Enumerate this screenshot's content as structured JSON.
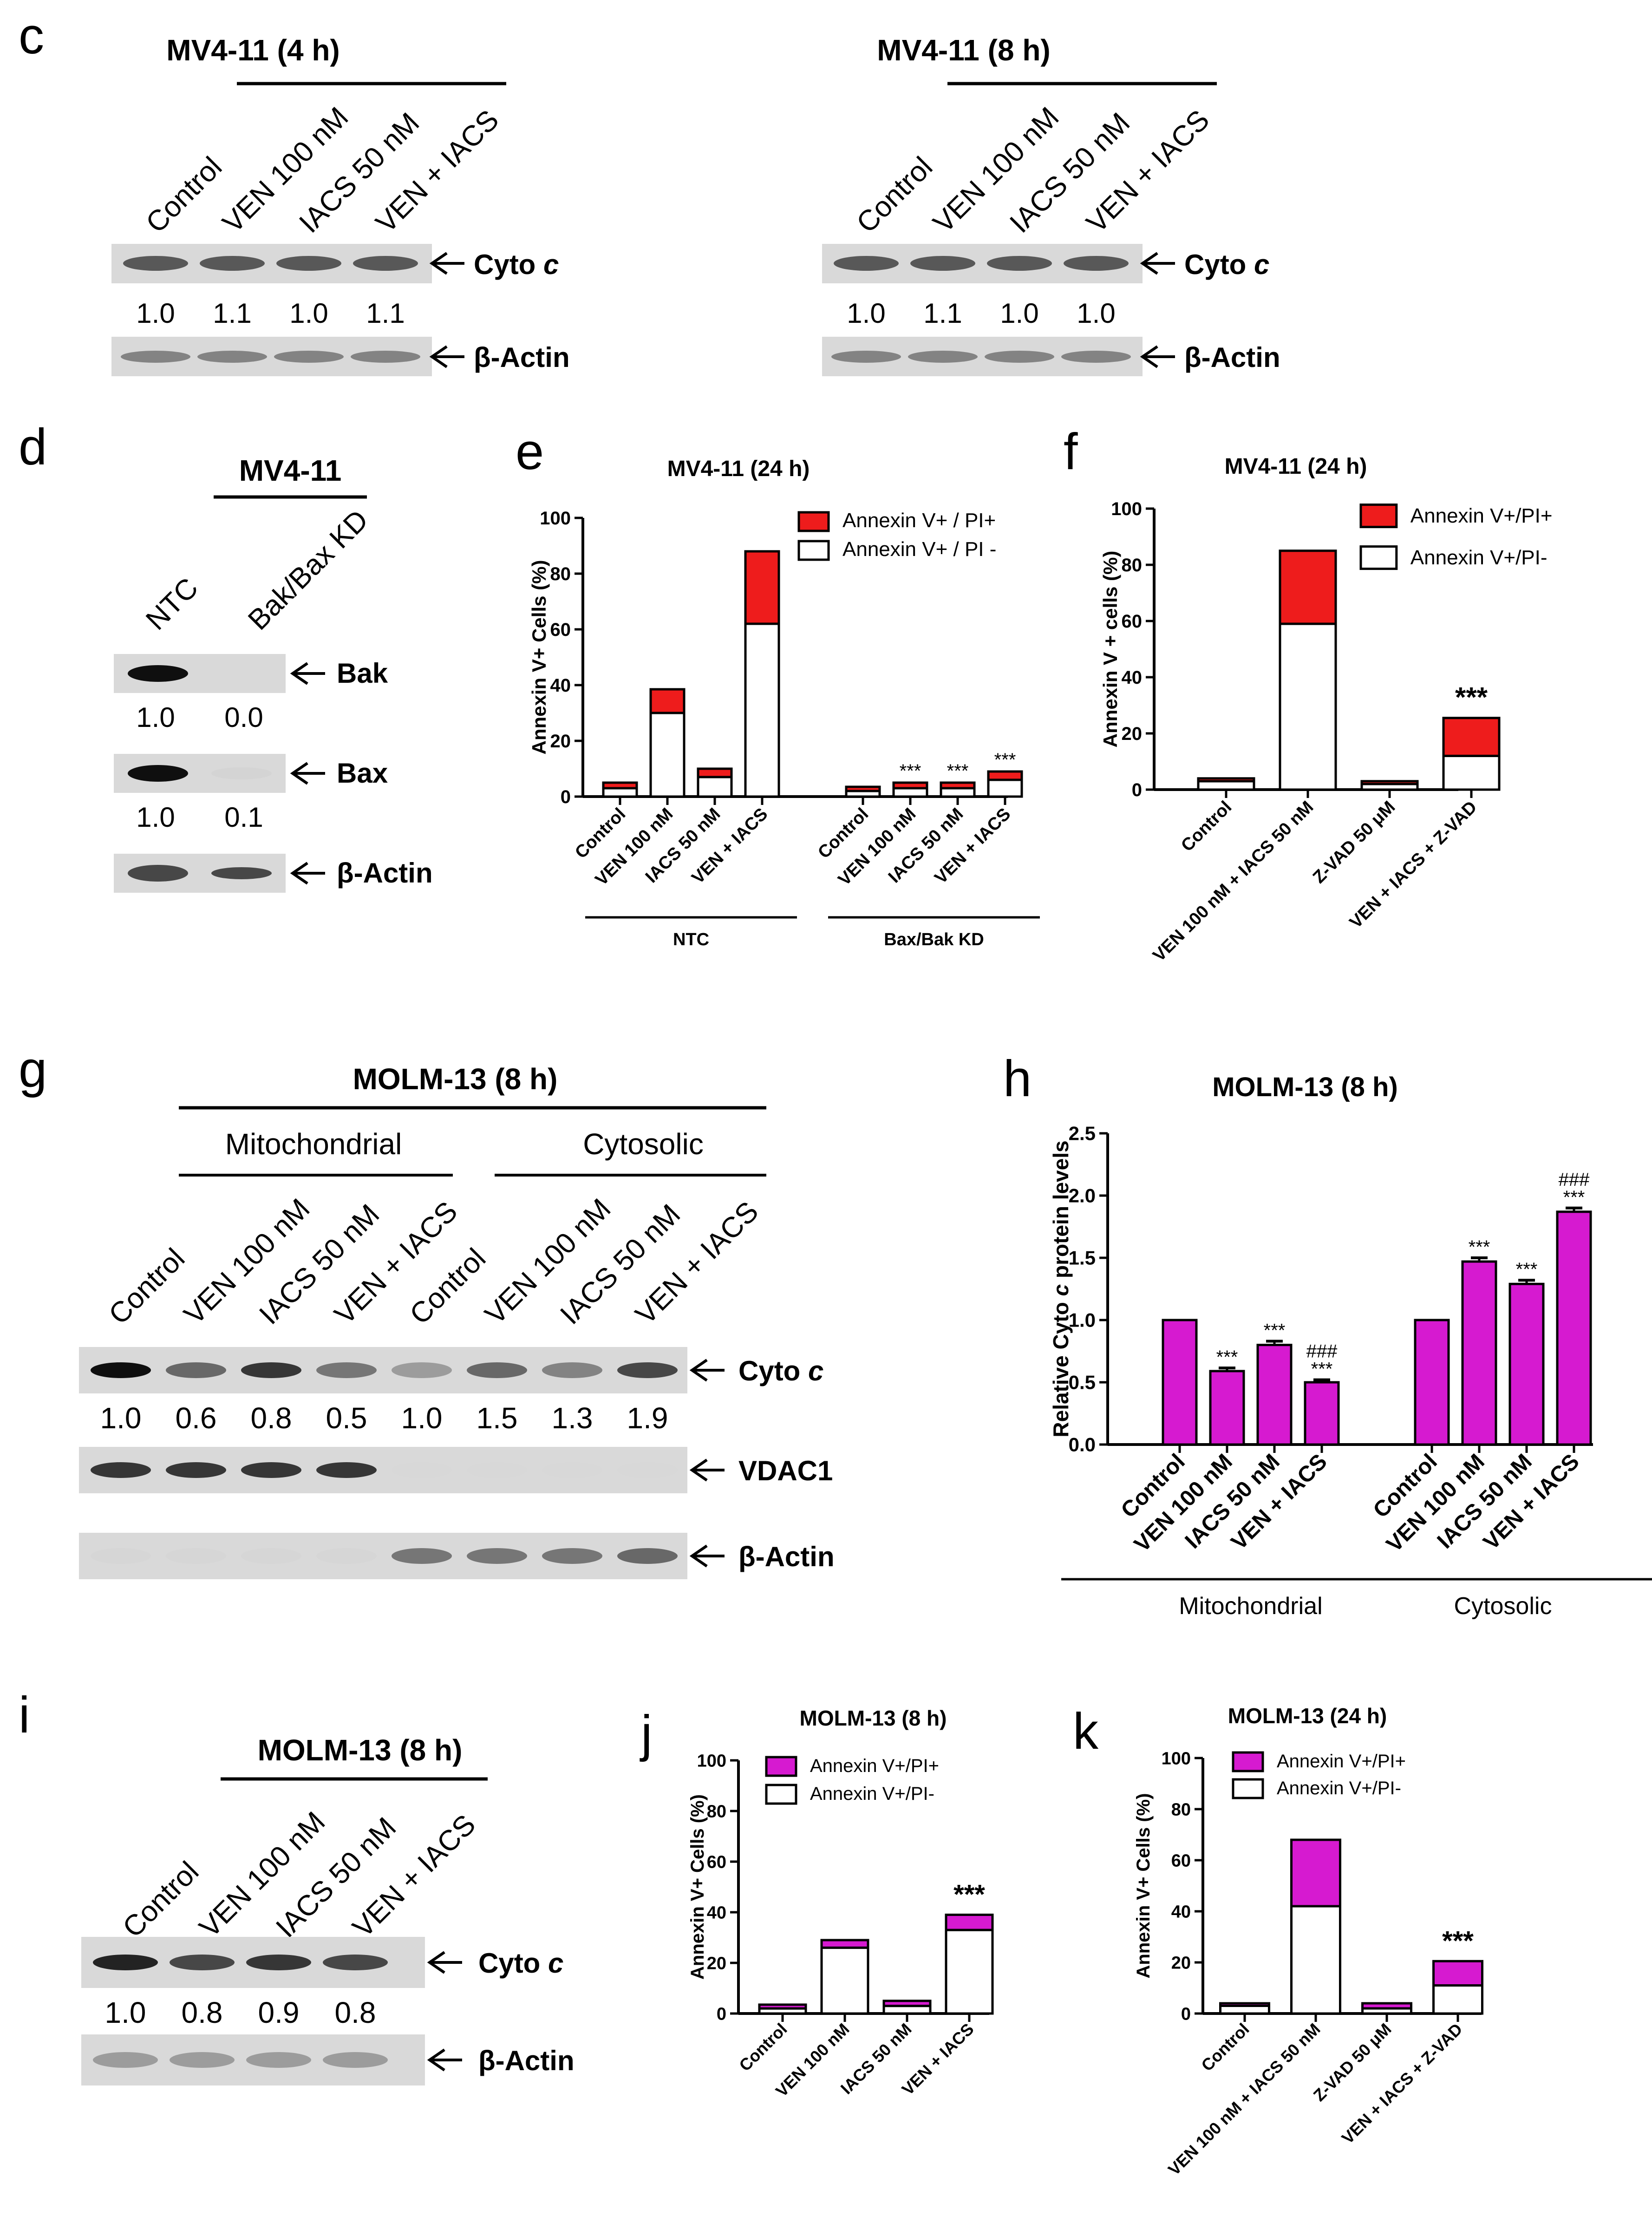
{
  "panels": {
    "c": {
      "letter": "c",
      "blots": [
        {
          "title": "MV4-11 (4 h)",
          "lanes": [
            "Control",
            "VEN 100 nM",
            "IACS 50 nM",
            "VEN + IACS"
          ],
          "cyto_label": "Cyto c",
          "actin_label": "β-Actin",
          "quant": [
            "1.0",
            "1.1",
            "1.0",
            "1.1"
          ]
        },
        {
          "title": "MV4-11 (8 h)",
          "lanes": [
            "Control",
            "VEN 100 nM",
            "IACS 50 nM",
            "VEN + IACS"
          ],
          "cyto_label": "Cyto c",
          "actin_label": "β-Actin",
          "quant": [
            "1.0",
            "1.1",
            "1.0",
            "1.0"
          ]
        }
      ]
    },
    "d": {
      "letter": "d",
      "title": "MV4-11",
      "lanes": [
        "NTC",
        "Bak/Bax KD"
      ],
      "rows": [
        {
          "label": "Bak",
          "quant": [
            "1.0",
            "0.0"
          ],
          "intensity": [
            1.0,
            0.0
          ]
        },
        {
          "label": "Bax",
          "quant": [
            "1.0",
            "0.1"
          ],
          "intensity": [
            1.0,
            0.15
          ]
        },
        {
          "label": "β-Actin",
          "quant": [],
          "intensity": [
            0.85,
            0.85
          ]
        }
      ]
    },
    "g": {
      "letter": "g",
      "title": "MOLM-13 (8 h)",
      "groups": [
        "Mitochondrial",
        "Cytosolic"
      ],
      "lanes": [
        "Control",
        "VEN 100 nM",
        "IACS 50 nM",
        "VEN + IACS",
        "Control",
        "VEN 100 nM",
        "IACS 50 nM",
        "VEN + IACS"
      ],
      "rows": [
        {
          "label": "Cyto c",
          "quant": [
            "1.0",
            "0.6",
            "0.8",
            "0.5",
            "1.0",
            "1.5",
            "1.3",
            "1.9"
          ],
          "intensity": [
            1.0,
            0.75,
            0.9,
            0.7,
            0.55,
            0.75,
            0.65,
            0.85
          ]
        },
        {
          "label": "VDAC1",
          "quant": [],
          "intensity": [
            0.9,
            0.9,
            0.9,
            0.9,
            0.03,
            0.03,
            0.03,
            0.03
          ]
        },
        {
          "label": "β-Actin",
          "quant": [],
          "intensity": [
            0.1,
            0.1,
            0.1,
            0.1,
            0.7,
            0.7,
            0.7,
            0.75
          ]
        }
      ]
    },
    "i": {
      "letter": "i",
      "title": "MOLM-13 (8 h)",
      "lanes": [
        "Control",
        "VEN 100 nM",
        "IACS 50 nM",
        "VEN + IACS"
      ],
      "rows": [
        {
          "label": "Cyto c",
          "quant": [
            "1.0",
            "0.8",
            "0.9",
            "0.8"
          ],
          "intensity": [
            0.95,
            0.85,
            0.9,
            0.85
          ]
        },
        {
          "label": "β-Actin",
          "quant": [],
          "intensity": [
            0.55,
            0.55,
            0.55,
            0.55
          ]
        }
      ]
    }
  },
  "colors": {
    "red": "#ee1c1c",
    "magenta": "#d61ad0",
    "white": "#ffffff",
    "black": "#000000"
  },
  "chart_data": [
    {
      "panel": "e",
      "type": "bar",
      "stacked": true,
      "title": "MV4-11 (24 h)",
      "ylabel": "Annexin V+ Cells (%)",
      "ylim": [
        0,
        100
      ],
      "yticks": [
        0,
        20,
        40,
        60,
        80,
        100
      ],
      "categories": [
        "Control",
        "VEN 100 nM",
        "IACS 50 nM",
        "VEN + IACS",
        "Control",
        "VEN 100 nM",
        "IACS 50 nM",
        "VEN + IACS"
      ],
      "groups": [
        {
          "label": "NTC",
          "from": 0,
          "to": 3
        },
        {
          "label": "Bax/Bak KD",
          "from": 4,
          "to": 7
        }
      ],
      "series": [
        {
          "name": "Annexin V+ / PI -",
          "color": "#ffffff",
          "values": [
            3,
            30,
            7,
            62,
            2,
            3,
            3,
            6
          ]
        },
        {
          "name": "Annexin V+ / PI+",
          "color": "#ee1c1c",
          "values": [
            2,
            8.5,
            3,
            26,
            1.5,
            2,
            2,
            3
          ]
        }
      ],
      "annotations": [
        "",
        "",
        "",
        "",
        "",
        "***",
        "***",
        "***"
      ],
      "legend": "top-right"
    },
    {
      "panel": "f",
      "type": "bar",
      "stacked": true,
      "title": "MV4-11 (24 h)",
      "ylabel": "Annexin V + cells (%)",
      "ylim": [
        0,
        100
      ],
      "yticks": [
        0,
        20,
        40,
        60,
        80,
        100
      ],
      "categories": [
        "Control",
        "VEN 100 nM + IACS 50 nM",
        "Z-VAD 50 μM",
        "VEN + IACS + Z-VAD"
      ],
      "series": [
        {
          "name": "Annexin V+/PI-",
          "color": "#ffffff",
          "values": [
            3,
            59,
            2,
            12
          ]
        },
        {
          "name": "Annexin V+/PI+",
          "color": "#ee1c1c",
          "values": [
            1,
            26,
            1,
            13.5
          ]
        }
      ],
      "annotations": [
        "",
        "",
        "",
        "***"
      ],
      "legend": "top-right"
    },
    {
      "panel": "h",
      "type": "bar",
      "title": "MOLM-13 (8 h)",
      "ylabel": "Relative Cyto c protein levels",
      "ylim": [
        0,
        2.5
      ],
      "yticks": [
        0.0,
        0.5,
        1.0,
        1.5,
        2.0,
        2.5
      ],
      "categories": [
        "Control",
        "VEN 100 nM",
        "IACS 50 nM",
        "VEN + IACS",
        "Control",
        "VEN 100 nM",
        "IACS 50 nM",
        "VEN + IACS"
      ],
      "groups": [
        {
          "label": "Mitochondrial",
          "from": 0,
          "to": 3
        },
        {
          "label": "Cytosolic",
          "from": 4,
          "to": 7
        }
      ],
      "series": [
        {
          "name": "Relative Cyto c",
          "color": "#d61ad0",
          "values": [
            1.0,
            0.59,
            0.8,
            0.5,
            1.0,
            1.47,
            1.29,
            1.87
          ],
          "errors": [
            0,
            0.025,
            0.03,
            0.02,
            0,
            0.03,
            0.03,
            0.03
          ]
        }
      ],
      "annotations": [
        "",
        "***",
        "***",
        "###\n***",
        "",
        "***",
        "***",
        "###\n***"
      ]
    },
    {
      "panel": "j",
      "type": "bar",
      "stacked": true,
      "title": "MOLM-13 (8 h)",
      "ylabel": "Annexin V+ Cells (%)",
      "ylim": [
        0,
        100
      ],
      "yticks": [
        0,
        20,
        40,
        60,
        80,
        100
      ],
      "categories": [
        "Control",
        "VEN 100 nM",
        "IACS 50 nM",
        "VEN + IACS"
      ],
      "series": [
        {
          "name": "Annexin V+/PI-",
          "color": "#ffffff",
          "values": [
            2,
            26,
            3,
            33
          ]
        },
        {
          "name": "Annexin V+/PI+",
          "color": "#d61ad0",
          "values": [
            1.5,
            3,
            2,
            6
          ]
        }
      ],
      "annotations": [
        "",
        "",
        "",
        "***"
      ],
      "legend": "top-right"
    },
    {
      "panel": "k",
      "type": "bar",
      "stacked": true,
      "title": "MOLM-13 (24 h)",
      "ylabel": "Annexin V+ Cells (%)",
      "ylim": [
        0,
        100
      ],
      "yticks": [
        0,
        20,
        40,
        60,
        80,
        100
      ],
      "categories": [
        "Control",
        "VEN 100 nM + IACS 50 nM",
        "Z-VAD 50 μM",
        "VEN + IACS + Z-VAD"
      ],
      "series": [
        {
          "name": "Annexin V+/PI-",
          "color": "#ffffff",
          "values": [
            3,
            42,
            2,
            11
          ]
        },
        {
          "name": "Annexin V+/PI+",
          "color": "#d61ad0",
          "values": [
            1,
            26,
            2,
            9.5
          ]
        }
      ],
      "annotations": [
        "",
        "",
        "",
        "***"
      ],
      "legend": "top-right"
    }
  ]
}
